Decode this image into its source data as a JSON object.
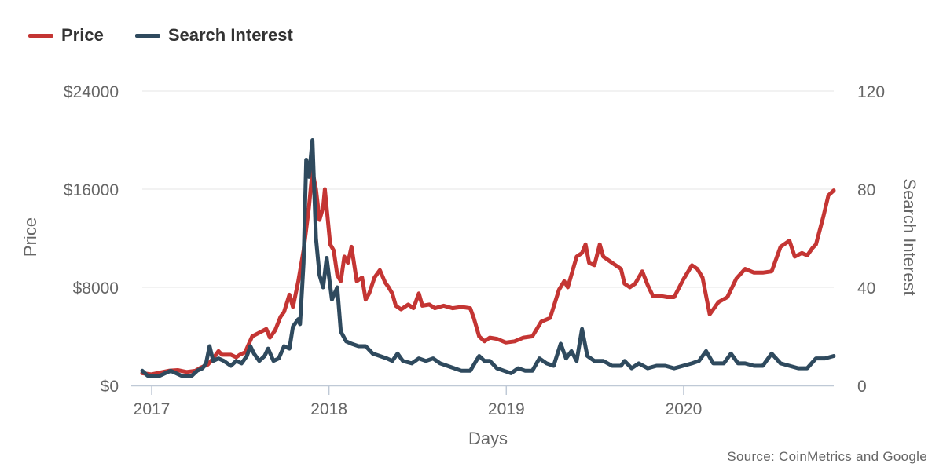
{
  "legend": {
    "price_label": "Price",
    "search_label": "Search Interest"
  },
  "source": "Source: CoinMetrics and Google",
  "chart_data": {
    "type": "line",
    "xlabel": "Days",
    "x_ticks": [
      "2017",
      "2018",
      "2019",
      "2020"
    ],
    "x_tick_values": [
      2017.0,
      2018.0,
      2019.0,
      2020.0
    ],
    "xlim": [
      2017.0,
      2020.9
    ],
    "y_left": {
      "label": "Price",
      "ticks": [
        "$0",
        "$8000",
        "$16000",
        "$24000"
      ],
      "tick_values": [
        0,
        8000,
        16000,
        24000
      ],
      "range": [
        0,
        24000
      ]
    },
    "y_right": {
      "label": "Search Interest",
      "ticks": [
        "0",
        "40",
        "80",
        "120"
      ],
      "tick_values": [
        0,
        40,
        80,
        120
      ],
      "range": [
        0,
        120
      ]
    },
    "grid": true,
    "colors": {
      "price": "#c43533",
      "search": "#2f4a5e",
      "grid": "#e6e6e6",
      "axis_text": "#666666"
    },
    "series": [
      {
        "name": "Price",
        "axis": "left",
        "points": [
          [
            2017.0,
            1000
          ],
          [
            2017.05,
            900
          ],
          [
            2017.1,
            1050
          ],
          [
            2017.15,
            1200
          ],
          [
            2017.2,
            1250
          ],
          [
            2017.25,
            1100
          ],
          [
            2017.3,
            1200
          ],
          [
            2017.33,
            1450
          ],
          [
            2017.37,
            1700
          ],
          [
            2017.4,
            2200
          ],
          [
            2017.43,
            2800
          ],
          [
            2017.45,
            2500
          ],
          [
            2017.5,
            2500
          ],
          [
            2017.53,
            2300
          ],
          [
            2017.55,
            2500
          ],
          [
            2017.58,
            2700
          ],
          [
            2017.62,
            4000
          ],
          [
            2017.66,
            4300
          ],
          [
            2017.7,
            4600
          ],
          [
            2017.72,
            3900
          ],
          [
            2017.75,
            4500
          ],
          [
            2017.78,
            5600
          ],
          [
            2017.8,
            6000
          ],
          [
            2017.83,
            7400
          ],
          [
            2017.85,
            6400
          ],
          [
            2017.88,
            8500
          ],
          [
            2017.91,
            11000
          ],
          [
            2017.94,
            14500
          ],
          [
            2017.96,
            17500
          ],
          [
            2017.98,
            16000
          ],
          [
            2018.0,
            13500
          ],
          [
            2018.02,
            14500
          ],
          [
            2018.03,
            16000
          ],
          [
            2018.06,
            11500
          ],
          [
            2018.08,
            11000
          ],
          [
            2018.1,
            9000
          ],
          [
            2018.12,
            8500
          ],
          [
            2018.14,
            10500
          ],
          [
            2018.16,
            10000
          ],
          [
            2018.18,
            11300
          ],
          [
            2018.21,
            8500
          ],
          [
            2018.24,
            8800
          ],
          [
            2018.26,
            7000
          ],
          [
            2018.28,
            7500
          ],
          [
            2018.31,
            8800
          ],
          [
            2018.34,
            9400
          ],
          [
            2018.37,
            8400
          ],
          [
            2018.39,
            8000
          ],
          [
            2018.41,
            7500
          ],
          [
            2018.43,
            6500
          ],
          [
            2018.46,
            6200
          ],
          [
            2018.5,
            6600
          ],
          [
            2018.53,
            6300
          ],
          [
            2018.56,
            7500
          ],
          [
            2018.58,
            6500
          ],
          [
            2018.62,
            6600
          ],
          [
            2018.65,
            6300
          ],
          [
            2018.7,
            6500
          ],
          [
            2018.75,
            6300
          ],
          [
            2018.8,
            6400
          ],
          [
            2018.85,
            6300
          ],
          [
            2018.87,
            5500
          ],
          [
            2018.9,
            4000
          ],
          [
            2018.93,
            3600
          ],
          [
            2018.96,
            3900
          ],
          [
            2019.0,
            3800
          ],
          [
            2019.05,
            3500
          ],
          [
            2019.1,
            3600
          ],
          [
            2019.15,
            3900
          ],
          [
            2019.2,
            4000
          ],
          [
            2019.25,
            5200
          ],
          [
            2019.3,
            5500
          ],
          [
            2019.35,
            7800
          ],
          [
            2019.38,
            8500
          ],
          [
            2019.4,
            8000
          ],
          [
            2019.45,
            10500
          ],
          [
            2019.48,
            10800
          ],
          [
            2019.5,
            11500
          ],
          [
            2019.52,
            10000
          ],
          [
            2019.55,
            9800
          ],
          [
            2019.58,
            11500
          ],
          [
            2019.6,
            10500
          ],
          [
            2019.65,
            10000
          ],
          [
            2019.7,
            9500
          ],
          [
            2019.72,
            8300
          ],
          [
            2019.75,
            8000
          ],
          [
            2019.78,
            8300
          ],
          [
            2019.82,
            9300
          ],
          [
            2019.85,
            8200
          ],
          [
            2019.88,
            7300
          ],
          [
            2019.92,
            7300
          ],
          [
            2019.96,
            7200
          ],
          [
            2020.0,
            7200
          ],
          [
            2020.05,
            8600
          ],
          [
            2020.1,
            9800
          ],
          [
            2020.13,
            9500
          ],
          [
            2020.16,
            8800
          ],
          [
            2020.2,
            5800
          ],
          [
            2020.25,
            6800
          ],
          [
            2020.3,
            7200
          ],
          [
            2020.35,
            8700
          ],
          [
            2020.4,
            9500
          ],
          [
            2020.45,
            9200
          ],
          [
            2020.5,
            9200
          ],
          [
            2020.55,
            9300
          ],
          [
            2020.6,
            11300
          ],
          [
            2020.65,
            11800
          ],
          [
            2020.68,
            10500
          ],
          [
            2020.72,
            10800
          ],
          [
            2020.75,
            10600
          ],
          [
            2020.78,
            11200
          ],
          [
            2020.8,
            11500
          ],
          [
            2020.84,
            13700
          ],
          [
            2020.87,
            15500
          ],
          [
            2020.9,
            15900
          ]
        ]
      },
      {
        "name": "Search Interest",
        "axis": "right",
        "points": [
          [
            2017.0,
            6
          ],
          [
            2017.03,
            4
          ],
          [
            2017.06,
            4
          ],
          [
            2017.1,
            4
          ],
          [
            2017.13,
            5
          ],
          [
            2017.16,
            6
          ],
          [
            2017.19,
            5
          ],
          [
            2017.22,
            4
          ],
          [
            2017.25,
            4
          ],
          [
            2017.28,
            4
          ],
          [
            2017.31,
            6
          ],
          [
            2017.34,
            7
          ],
          [
            2017.36,
            9
          ],
          [
            2017.38,
            16
          ],
          [
            2017.4,
            10
          ],
          [
            2017.43,
            11
          ],
          [
            2017.46,
            10
          ],
          [
            2017.5,
            8
          ],
          [
            2017.53,
            10
          ],
          [
            2017.56,
            9
          ],
          [
            2017.59,
            12
          ],
          [
            2017.61,
            16
          ],
          [
            2017.63,
            13
          ],
          [
            2017.66,
            10
          ],
          [
            2017.69,
            12
          ],
          [
            2017.71,
            15
          ],
          [
            2017.74,
            10
          ],
          [
            2017.77,
            11
          ],
          [
            2017.8,
            16
          ],
          [
            2017.83,
            15
          ],
          [
            2017.85,
            24
          ],
          [
            2017.88,
            27
          ],
          [
            2017.89,
            25
          ],
          [
            2017.91,
            50
          ],
          [
            2017.925,
            92
          ],
          [
            2017.94,
            85
          ],
          [
            2017.96,
            100
          ],
          [
            2017.98,
            60
          ],
          [
            2018.0,
            45
          ],
          [
            2018.02,
            40
          ],
          [
            2018.04,
            52
          ],
          [
            2018.07,
            35
          ],
          [
            2018.1,
            40
          ],
          [
            2018.12,
            22
          ],
          [
            2018.15,
            18
          ],
          [
            2018.18,
            17
          ],
          [
            2018.22,
            16
          ],
          [
            2018.26,
            16
          ],
          [
            2018.3,
            13
          ],
          [
            2018.34,
            12
          ],
          [
            2018.38,
            11
          ],
          [
            2018.41,
            10
          ],
          [
            2018.44,
            13
          ],
          [
            2018.47,
            10
          ],
          [
            2018.52,
            9
          ],
          [
            2018.56,
            11
          ],
          [
            2018.6,
            10
          ],
          [
            2018.64,
            11
          ],
          [
            2018.68,
            9
          ],
          [
            2018.72,
            8
          ],
          [
            2018.76,
            7
          ],
          [
            2018.8,
            6
          ],
          [
            2018.85,
            6
          ],
          [
            2018.9,
            12
          ],
          [
            2018.93,
            10
          ],
          [
            2018.96,
            10
          ],
          [
            2019.0,
            7
          ],
          [
            2019.04,
            6
          ],
          [
            2019.08,
            5
          ],
          [
            2019.12,
            7
          ],
          [
            2019.16,
            6
          ],
          [
            2019.2,
            6
          ],
          [
            2019.24,
            11
          ],
          [
            2019.28,
            9
          ],
          [
            2019.32,
            8
          ],
          [
            2019.36,
            17
          ],
          [
            2019.39,
            11
          ],
          [
            2019.42,
            14
          ],
          [
            2019.45,
            10
          ],
          [
            2019.48,
            23
          ],
          [
            2019.51,
            12
          ],
          [
            2019.55,
            10
          ],
          [
            2019.6,
            10
          ],
          [
            2019.65,
            8
          ],
          [
            2019.7,
            8
          ],
          [
            2019.72,
            10
          ],
          [
            2019.76,
            7
          ],
          [
            2019.8,
            9
          ],
          [
            2019.85,
            7
          ],
          [
            2019.9,
            8
          ],
          [
            2019.95,
            8
          ],
          [
            2020.0,
            7
          ],
          [
            2020.05,
            8
          ],
          [
            2020.1,
            9
          ],
          [
            2020.14,
            10
          ],
          [
            2020.18,
            14
          ],
          [
            2020.22,
            9
          ],
          [
            2020.28,
            9
          ],
          [
            2020.32,
            13
          ],
          [
            2020.36,
            9
          ],
          [
            2020.4,
            9
          ],
          [
            2020.45,
            8
          ],
          [
            2020.5,
            8
          ],
          [
            2020.55,
            13
          ],
          [
            2020.6,
            9
          ],
          [
            2020.65,
            8
          ],
          [
            2020.7,
            7
          ],
          [
            2020.75,
            7
          ],
          [
            2020.8,
            11
          ],
          [
            2020.85,
            11
          ],
          [
            2020.9,
            12
          ]
        ]
      }
    ]
  }
}
